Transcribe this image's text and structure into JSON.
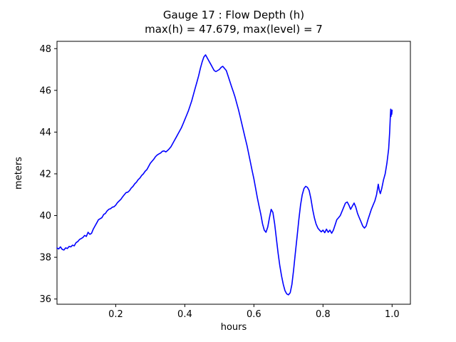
{
  "figure": {
    "background": "#ffffff",
    "axes_edge_color": "#000000"
  },
  "chart_data": {
    "type": "line",
    "title": "Gauge 17 : Flow Depth (h)",
    "subtitle": "max(h) =  47.679,    max(level) = 7",
    "xlabel": "hours",
    "ylabel": "meters",
    "xlim": [
      0.03,
      1.053
    ],
    "ylim": [
      35.75,
      48.35
    ],
    "xticks": [
      0.2,
      0.4,
      0.6,
      0.8,
      1.0
    ],
    "xtick_labels": [
      "0.2",
      "0.4",
      "0.6",
      "0.8",
      "1.0"
    ],
    "yticks": [
      36,
      38,
      40,
      42,
      44,
      46,
      48
    ],
    "ytick_labels": [
      "36",
      "38",
      "40",
      "42",
      "44",
      "46",
      "48"
    ],
    "grid": false,
    "legend": null,
    "line_color": "#0000ff",
    "line_width": 1.6,
    "max_h": 47.679,
    "max_level": 7,
    "series": [
      {
        "name": "flow-depth-h",
        "points": [
          [
            0.03,
            38.45
          ],
          [
            0.035,
            38.4
          ],
          [
            0.04,
            38.5
          ],
          [
            0.045,
            38.38
          ],
          [
            0.05,
            38.35
          ],
          [
            0.055,
            38.45
          ],
          [
            0.06,
            38.42
          ],
          [
            0.065,
            38.52
          ],
          [
            0.07,
            38.5
          ],
          [
            0.075,
            38.58
          ],
          [
            0.08,
            38.55
          ],
          [
            0.085,
            38.7
          ],
          [
            0.09,
            38.75
          ],
          [
            0.095,
            38.85
          ],
          [
            0.1,
            38.9
          ],
          [
            0.105,
            38.95
          ],
          [
            0.11,
            39.05
          ],
          [
            0.115,
            39.0
          ],
          [
            0.12,
            39.2
          ],
          [
            0.125,
            39.1
          ],
          [
            0.13,
            39.15
          ],
          [
            0.135,
            39.35
          ],
          [
            0.14,
            39.5
          ],
          [
            0.145,
            39.65
          ],
          [
            0.15,
            39.8
          ],
          [
            0.155,
            39.85
          ],
          [
            0.16,
            39.9
          ],
          [
            0.165,
            40.05
          ],
          [
            0.17,
            40.1
          ],
          [
            0.175,
            40.22
          ],
          [
            0.18,
            40.3
          ],
          [
            0.185,
            40.33
          ],
          [
            0.19,
            40.4
          ],
          [
            0.195,
            40.42
          ],
          [
            0.2,
            40.5
          ],
          [
            0.205,
            40.62
          ],
          [
            0.21,
            40.7
          ],
          [
            0.215,
            40.78
          ],
          [
            0.22,
            40.9
          ],
          [
            0.225,
            41.0
          ],
          [
            0.23,
            41.1
          ],
          [
            0.235,
            41.12
          ],
          [
            0.24,
            41.2
          ],
          [
            0.245,
            41.32
          ],
          [
            0.25,
            41.4
          ],
          [
            0.255,
            41.52
          ],
          [
            0.26,
            41.6
          ],
          [
            0.265,
            41.72
          ],
          [
            0.27,
            41.8
          ],
          [
            0.275,
            41.92
          ],
          [
            0.28,
            42.0
          ],
          [
            0.285,
            42.12
          ],
          [
            0.29,
            42.2
          ],
          [
            0.295,
            42.35
          ],
          [
            0.3,
            42.5
          ],
          [
            0.305,
            42.6
          ],
          [
            0.31,
            42.7
          ],
          [
            0.315,
            42.82
          ],
          [
            0.32,
            42.9
          ],
          [
            0.325,
            42.95
          ],
          [
            0.33,
            43.0
          ],
          [
            0.335,
            43.08
          ],
          [
            0.34,
            43.1
          ],
          [
            0.345,
            43.05
          ],
          [
            0.35,
            43.12
          ],
          [
            0.355,
            43.2
          ],
          [
            0.36,
            43.3
          ],
          [
            0.365,
            43.45
          ],
          [
            0.37,
            43.6
          ],
          [
            0.375,
            43.75
          ],
          [
            0.38,
            43.9
          ],
          [
            0.385,
            44.05
          ],
          [
            0.39,
            44.2
          ],
          [
            0.395,
            44.4
          ],
          [
            0.4,
            44.6
          ],
          [
            0.405,
            44.8
          ],
          [
            0.41,
            45.0
          ],
          [
            0.415,
            45.25
          ],
          [
            0.42,
            45.5
          ],
          [
            0.425,
            45.8
          ],
          [
            0.43,
            46.1
          ],
          [
            0.435,
            46.4
          ],
          [
            0.44,
            46.7
          ],
          [
            0.445,
            47.05
          ],
          [
            0.45,
            47.35
          ],
          [
            0.455,
            47.6
          ],
          [
            0.46,
            47.7
          ],
          [
            0.465,
            47.55
          ],
          [
            0.47,
            47.4
          ],
          [
            0.475,
            47.25
          ],
          [
            0.48,
            47.1
          ],
          [
            0.485,
            46.95
          ],
          [
            0.49,
            46.9
          ],
          [
            0.495,
            46.95
          ],
          [
            0.5,
            47.0
          ],
          [
            0.505,
            47.1
          ],
          [
            0.51,
            47.15
          ],
          [
            0.515,
            47.05
          ],
          [
            0.52,
            46.95
          ],
          [
            0.525,
            46.7
          ],
          [
            0.53,
            46.45
          ],
          [
            0.535,
            46.2
          ],
          [
            0.54,
            45.95
          ],
          [
            0.545,
            45.7
          ],
          [
            0.55,
            45.4
          ],
          [
            0.555,
            45.1
          ],
          [
            0.56,
            44.75
          ],
          [
            0.565,
            44.4
          ],
          [
            0.57,
            44.05
          ],
          [
            0.575,
            43.7
          ],
          [
            0.58,
            43.35
          ],
          [
            0.585,
            42.95
          ],
          [
            0.59,
            42.55
          ],
          [
            0.595,
            42.15
          ],
          [
            0.6,
            41.75
          ],
          [
            0.605,
            41.3
          ],
          [
            0.61,
            40.85
          ],
          [
            0.615,
            40.45
          ],
          [
            0.62,
            40.05
          ],
          [
            0.625,
            39.6
          ],
          [
            0.63,
            39.3
          ],
          [
            0.635,
            39.2
          ],
          [
            0.64,
            39.45
          ],
          [
            0.645,
            39.9
          ],
          [
            0.65,
            40.3
          ],
          [
            0.655,
            40.15
          ],
          [
            0.66,
            39.6
          ],
          [
            0.665,
            38.9
          ],
          [
            0.67,
            38.2
          ],
          [
            0.675,
            37.6
          ],
          [
            0.68,
            37.1
          ],
          [
            0.685,
            36.7
          ],
          [
            0.69,
            36.4
          ],
          [
            0.695,
            36.25
          ],
          [
            0.7,
            36.2
          ],
          [
            0.705,
            36.3
          ],
          [
            0.71,
            36.7
          ],
          [
            0.715,
            37.4
          ],
          [
            0.72,
            38.2
          ],
          [
            0.725,
            39.0
          ],
          [
            0.73,
            39.8
          ],
          [
            0.735,
            40.5
          ],
          [
            0.74,
            41.0
          ],
          [
            0.745,
            41.3
          ],
          [
            0.75,
            41.4
          ],
          [
            0.755,
            41.35
          ],
          [
            0.76,
            41.2
          ],
          [
            0.765,
            40.8
          ],
          [
            0.77,
            40.3
          ],
          [
            0.775,
            39.9
          ],
          [
            0.78,
            39.6
          ],
          [
            0.785,
            39.4
          ],
          [
            0.79,
            39.3
          ],
          [
            0.795,
            39.22
          ],
          [
            0.8,
            39.3
          ],
          [
            0.805,
            39.18
          ],
          [
            0.81,
            39.35
          ],
          [
            0.815,
            39.2
          ],
          [
            0.82,
            39.3
          ],
          [
            0.825,
            39.15
          ],
          [
            0.83,
            39.3
          ],
          [
            0.835,
            39.55
          ],
          [
            0.84,
            39.8
          ],
          [
            0.845,
            39.9
          ],
          [
            0.85,
            40.0
          ],
          [
            0.855,
            40.2
          ],
          [
            0.86,
            40.4
          ],
          [
            0.865,
            40.6
          ],
          [
            0.87,
            40.65
          ],
          [
            0.875,
            40.5
          ],
          [
            0.88,
            40.3
          ],
          [
            0.885,
            40.45
          ],
          [
            0.89,
            40.6
          ],
          [
            0.895,
            40.4
          ],
          [
            0.9,
            40.1
          ],
          [
            0.905,
            39.9
          ],
          [
            0.91,
            39.7
          ],
          [
            0.915,
            39.5
          ],
          [
            0.92,
            39.4
          ],
          [
            0.925,
            39.5
          ],
          [
            0.93,
            39.8
          ],
          [
            0.935,
            40.05
          ],
          [
            0.94,
            40.3
          ],
          [
            0.945,
            40.5
          ],
          [
            0.95,
            40.7
          ],
          [
            0.955,
            41.0
          ],
          [
            0.96,
            41.5
          ],
          [
            0.963,
            41.2
          ],
          [
            0.966,
            41.05
          ],
          [
            0.97,
            41.3
          ],
          [
            0.975,
            41.7
          ],
          [
            0.98,
            42.0
          ],
          [
            0.985,
            42.5
          ],
          [
            0.99,
            43.2
          ],
          [
            0.993,
            44.0
          ],
          [
            0.995,
            44.8
          ],
          [
            0.996,
            45.1
          ],
          [
            0.997,
            44.75
          ],
          [
            0.998,
            45.05
          ],
          [
            0.999,
            44.85
          ],
          [
            1.0,
            45.05
          ]
        ]
      }
    ]
  }
}
